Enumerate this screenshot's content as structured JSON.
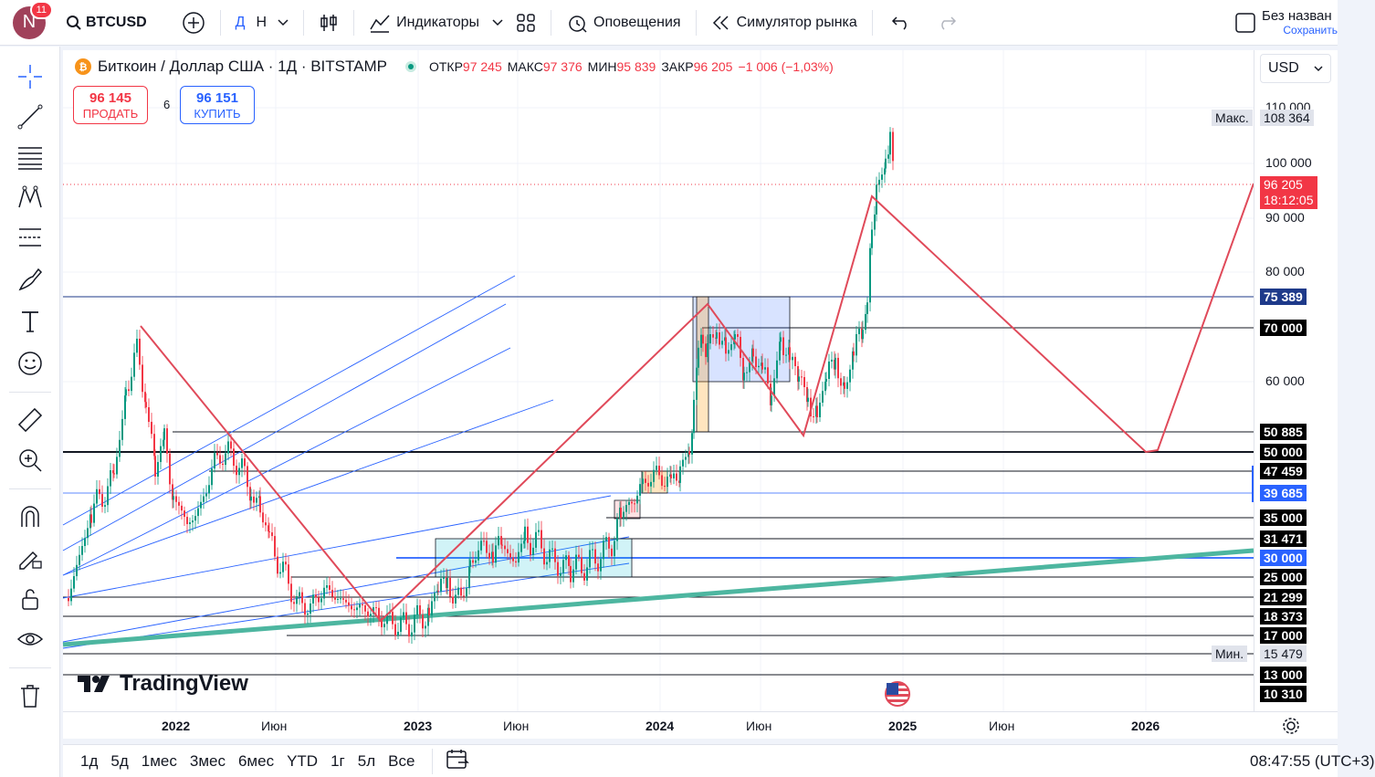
{
  "topbar": {
    "avatar_letter": "N",
    "notifications": "11",
    "symbol": "BTCUSD",
    "interval": "Д",
    "interval2": "Н",
    "indicators": "Индикаторы",
    "alerts": "Оповещения",
    "replay": "Симулятор рынка",
    "layout_name": "Без назван",
    "save": "Сохранить"
  },
  "legend": {
    "title": "Биткоин / Доллар США · 1Д · BITSTAMP",
    "o_label": "ОТКР",
    "o_val": "97 245",
    "h_label": "МАКС",
    "h_val": "97 376",
    "l_label": "МИН",
    "l_val": "95 839",
    "c_label": "ЗАКР",
    "c_val": "96 205",
    "change": "−1 006 (−1,03%)"
  },
  "trade": {
    "sell_price": "96 145",
    "sell_label": "ПРОДАТЬ",
    "spread": "6",
    "buy_price": "96 151",
    "buy_label": "КУПИТЬ"
  },
  "currency": "USD",
  "price_scale": {
    "ticks": [
      "110 000",
      "100 000",
      "90 000",
      "80 000",
      "60 000"
    ],
    "max_label": "Макс.",
    "max_val": "108 364",
    "min_label": "Мин.",
    "min_val": "15 479",
    "last_price": "96 205",
    "countdown": "18:12:05",
    "levels": [
      "75 389",
      "70 000",
      "50 885",
      "50 000",
      "47 459",
      "39 685",
      "35 000",
      "31 471",
      "30 000",
      "25 000",
      "21 299",
      "18 373",
      "17 000",
      "13 000",
      "10 310"
    ]
  },
  "time_scale": {
    "labels": [
      "2022",
      "Июн",
      "2023",
      "Июн",
      "2024",
      "Июн",
      "2025",
      "Июн",
      "2026"
    ]
  },
  "bottombar": {
    "ranges": [
      "1д",
      "5д",
      "1мес",
      "3мес",
      "6мес",
      "YTD",
      "1г",
      "5л",
      "Все"
    ],
    "clock": "08:47:55 (UTC+3)"
  },
  "branding": "TradingView",
  "colors": {
    "up": "#089981",
    "down": "#f23645",
    "zigzag": "#e04a5a",
    "trend": "#4db6a0",
    "hline_blue": "#2962ff",
    "level_navy": "#1e3a8a"
  }
}
